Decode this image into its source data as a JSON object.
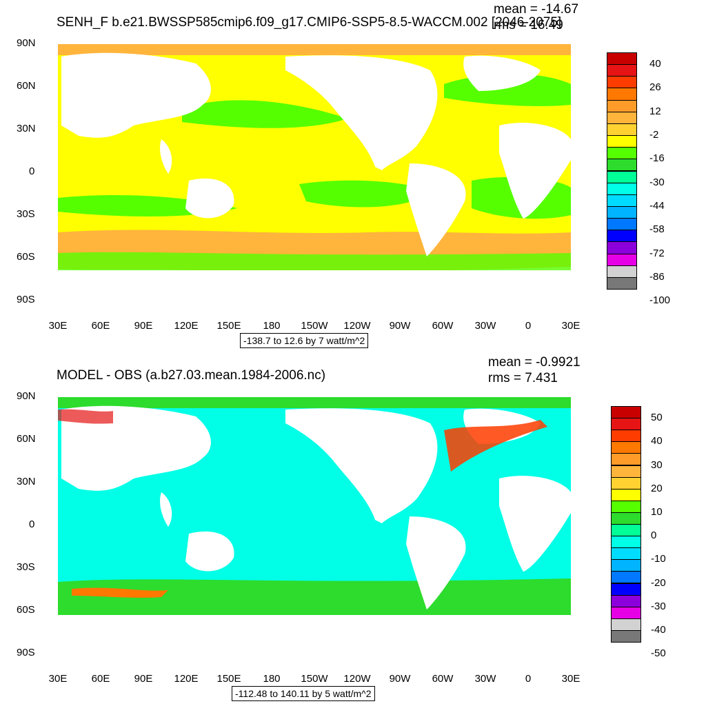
{
  "top": {
    "title": "SENH_F b.e21.BWSSP585cmip6.f09_g17.CMIP6-SSP5-8.5-WACCM.002 [2046-2075]",
    "mean_label": "mean = -14.67",
    "rms_label": "rms = 16.49",
    "range_label": "-138.7 to 12.6 by 7 watt/m^2",
    "colorbar": {
      "labels": [
        "40",
        "26",
        "12",
        "-2",
        "-16",
        "-30",
        "-44",
        "-58",
        "-72",
        "-86",
        "-100"
      ],
      "colors": [
        "#c80000",
        "#e61414",
        "#ff3c00",
        "#ff7800",
        "#ff9b28",
        "#ffb43c",
        "#ffd232",
        "#ffff00",
        "#55ff00",
        "#2ddc2d",
        "#00ff96",
        "#00ffe6",
        "#00dcff",
        "#00b4ff",
        "#0078ff",
        "#0000ff",
        "#8c00dc",
        "#e600e6",
        "#d2d2d2",
        "#787878"
      ]
    }
  },
  "bottom": {
    "title": "MODEL - OBS (a.b27.03.mean.1984-2006.nc)",
    "mean_label": "mean = -0.9921",
    "rms_label": "rms = 7.431",
    "range_label": "-112.48 to 140.11 by 5 watt/m^2",
    "colorbar": {
      "labels": [
        "50",
        "40",
        "30",
        "20",
        "10",
        "0",
        "-10",
        "-20",
        "-30",
        "-40",
        "-50"
      ],
      "colors": [
        "#c80000",
        "#e61414",
        "#ff3c00",
        "#ff7800",
        "#ff9b28",
        "#ffb43c",
        "#ffd232",
        "#ffff00",
        "#55ff00",
        "#2ddc2d",
        "#00ff96",
        "#00ffe6",
        "#00dcff",
        "#00b4ff",
        "#0078ff",
        "#0000ff",
        "#8c00dc",
        "#e600e6",
        "#d2d2d2",
        "#787878"
      ]
    }
  },
  "axes": {
    "lat_labels": [
      "90N",
      "60N",
      "30N",
      "0",
      "30S",
      "60S",
      "90S"
    ],
    "lon_labels": [
      "30E",
      "60E",
      "90E",
      "120E",
      "150E",
      "180",
      "150W",
      "120W",
      "90W",
      "60W",
      "30W",
      "0",
      "30E"
    ]
  }
}
